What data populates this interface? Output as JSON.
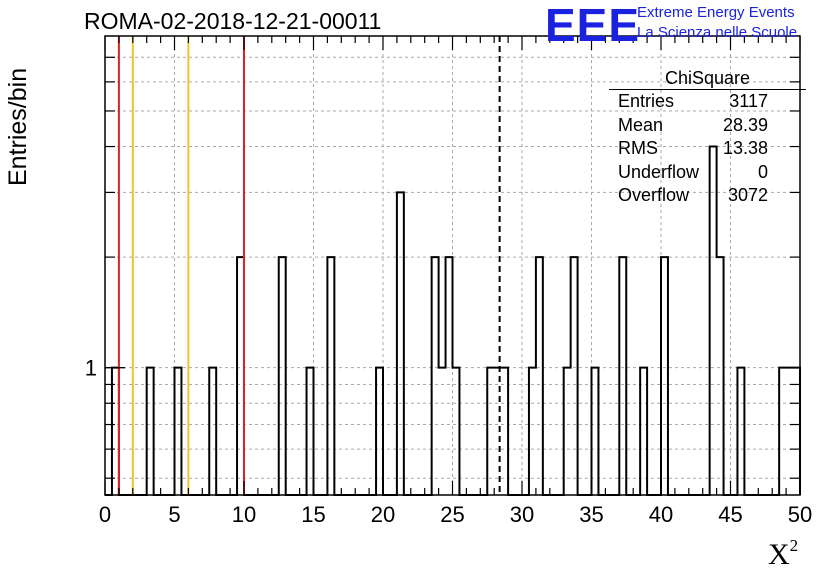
{
  "header": {
    "title": "ROMA-02-2018-12-21-00011"
  },
  "logo": {
    "mark": "EEE",
    "line1": "Extreme Energy Events",
    "line2": "La Scienza nelle Scuole",
    "color": "#1a22e0"
  },
  "stats_box": {
    "title": "ChiSquare",
    "rows": [
      {
        "key": "Entries",
        "value": "3117"
      },
      {
        "key": "Mean",
        "value": "28.39"
      },
      {
        "key": "RMS",
        "value": "13.38"
      },
      {
        "key": "Underflow",
        "value": "0"
      },
      {
        "key": "Overflow",
        "value": "3072"
      }
    ]
  },
  "chart_data": {
    "type": "histogram",
    "title": "ROMA-02-2018-12-21-00011",
    "xlabel": "X",
    "xlabel_superscript": "2",
    "ylabel": "Entries/bin",
    "xlim": [
      0,
      50
    ],
    "ylim": [
      0.45,
      8
    ],
    "yscale": "log",
    "xticks": [
      0,
      5,
      10,
      15,
      20,
      25,
      30,
      35,
      40,
      45,
      50
    ],
    "ytick_labels": [
      1
    ],
    "grid": true,
    "bin_width": 0.5,
    "bins": [
      {
        "x": 0.5,
        "count": 1
      },
      {
        "x": 3.0,
        "count": 1
      },
      {
        "x": 5.0,
        "count": 1
      },
      {
        "x": 7.5,
        "count": 1
      },
      {
        "x": 9.5,
        "count": 2
      },
      {
        "x": 12.5,
        "count": 2
      },
      {
        "x": 14.5,
        "count": 1
      },
      {
        "x": 16.0,
        "count": 2
      },
      {
        "x": 19.5,
        "count": 1
      },
      {
        "x": 21.0,
        "count": 3
      },
      {
        "x": 23.5,
        "count": 2
      },
      {
        "x": 24.0,
        "count": 1
      },
      {
        "x": 24.5,
        "count": 2
      },
      {
        "x": 25.0,
        "count": 1
      },
      {
        "x": 27.5,
        "count": 1
      },
      {
        "x": 28.0,
        "count": 1
      },
      {
        "x": 28.5,
        "count": 1
      },
      {
        "x": 30.5,
        "count": 1
      },
      {
        "x": 31.0,
        "count": 2
      },
      {
        "x": 33.0,
        "count": 1
      },
      {
        "x": 33.5,
        "count": 2
      },
      {
        "x": 35.0,
        "count": 1
      },
      {
        "x": 37.0,
        "count": 2
      },
      {
        "x": 38.5,
        "count": 1
      },
      {
        "x": 40.0,
        "count": 2
      },
      {
        "x": 43.5,
        "count": 4
      },
      {
        "x": 44.0,
        "count": 2
      },
      {
        "x": 45.5,
        "count": 1
      },
      {
        "x": 48.5,
        "count": 1
      },
      {
        "x": 49.0,
        "count": 1
      },
      {
        "x": 49.5,
        "count": 1
      }
    ],
    "vertical_lines": [
      {
        "x": 1,
        "color": "#dd2222",
        "style": "solid"
      },
      {
        "x": 2,
        "color": "#f2c12e",
        "style": "solid"
      },
      {
        "x": 6,
        "color": "#f2c12e",
        "style": "solid"
      },
      {
        "x": 10,
        "color": "#dd2222",
        "style": "solid"
      },
      {
        "x": 28.39,
        "color": "#000000",
        "style": "dashed"
      }
    ]
  }
}
